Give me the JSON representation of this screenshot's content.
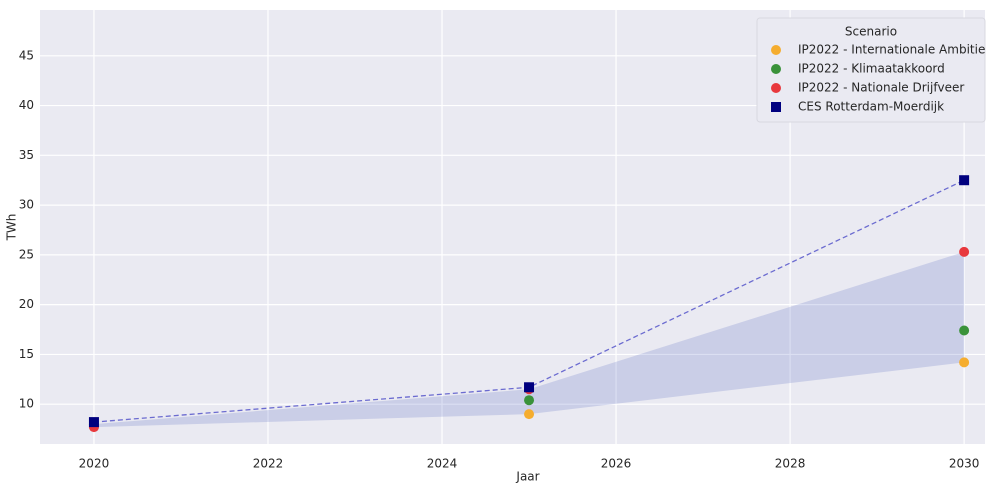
{
  "chart_data": {
    "type": "scatter",
    "xlabel": "Jaar",
    "ylabel": "TWh",
    "x": [
      2020,
      2025,
      2030
    ],
    "series": [
      {
        "name": "IP2022 - Internationale Ambitie",
        "color": "#f5ad2f",
        "marker": "circle",
        "values": [
          7.8,
          9.0,
          14.2
        ]
      },
      {
        "name": "IP2022 - Klimaatakkoord",
        "color": "#3a923a",
        "marker": "circle",
        "values": [
          8.0,
          10.4,
          17.4
        ]
      },
      {
        "name": "IP2022 - Nationale Drijfveer",
        "color": "#e8383d",
        "marker": "circle",
        "values": [
          7.7,
          11.5,
          25.3
        ]
      },
      {
        "name": "CES Rotterdam-Moerdijk",
        "color": "#00007f",
        "marker": "square",
        "line": "dashed",
        "values": [
          8.2,
          11.7,
          32.5
        ]
      }
    ],
    "legend_title": "Scenario",
    "legend": "upper right",
    "xlim": [
      2019.38,
      2030.24
    ],
    "xticks": [
      2020,
      2022,
      2024,
      2026,
      2028,
      2030
    ],
    "ylim": [
      6,
      49.6
    ],
    "yticks": [
      10,
      15,
      20,
      25,
      30,
      35,
      40,
      45
    ],
    "grid": true
  }
}
